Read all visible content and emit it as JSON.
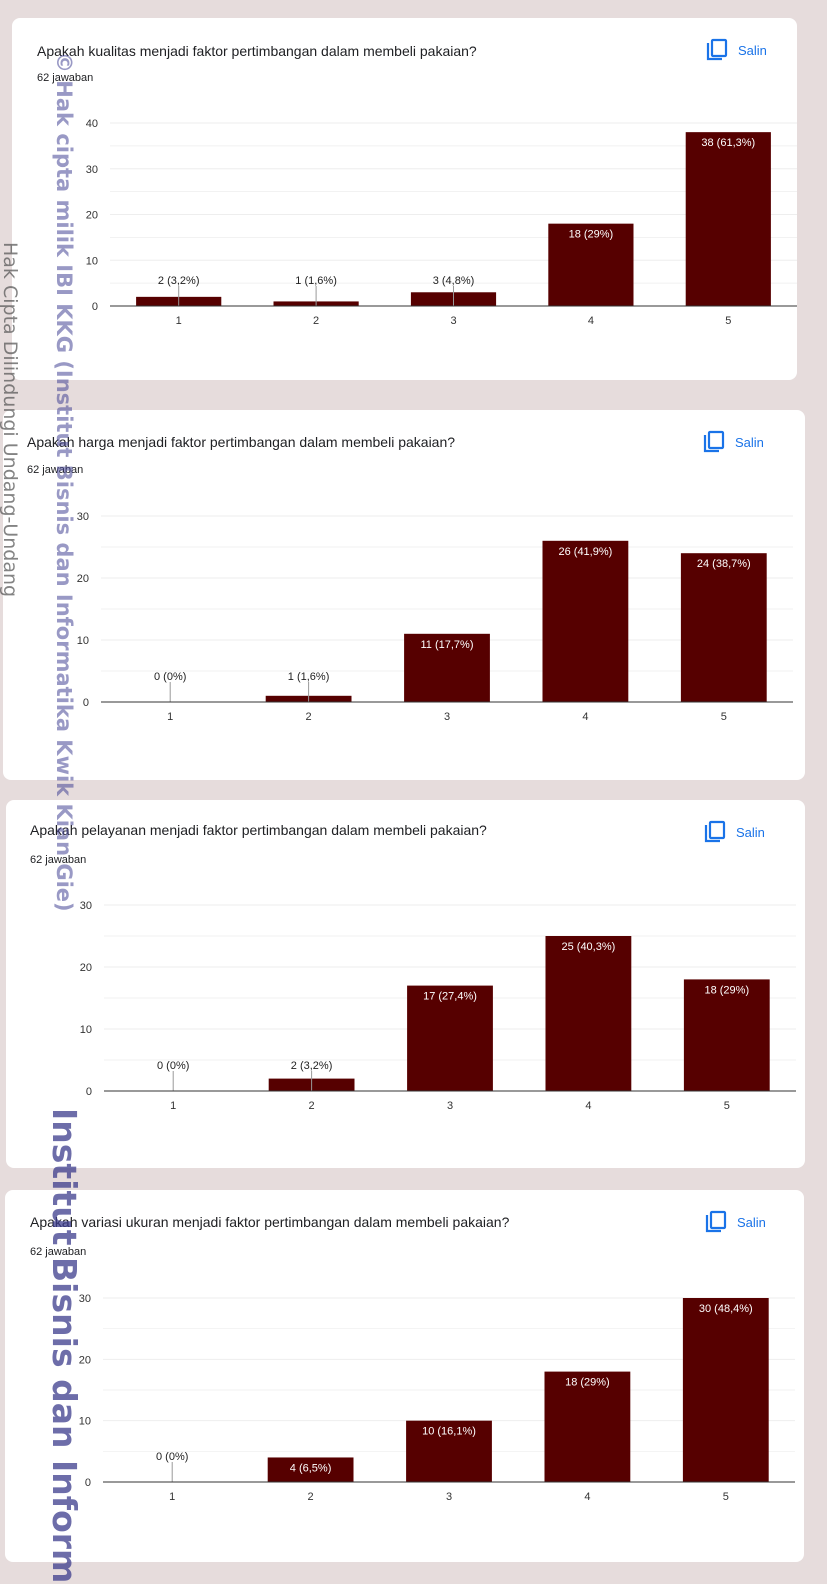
{
  "copy_label": "Salin",
  "watermarks": {
    "institution": "© Hak cipta milik IBI KKG (Institut Bisnis dan Informatika Kwik Kian Gie)",
    "protection": "Hak Cipta Dilindungi Undang-Undang",
    "bottom": "Institut Bisnis dan Inform"
  },
  "colors": {
    "bar": "#560000",
    "accent": "#1a73e8",
    "grid": "#eeeeee",
    "axis": "#333333"
  },
  "chart_data": [
    {
      "type": "bar",
      "title": "Apakah kualitas menjadi faktor pertimbangan dalam membeli pakaian?",
      "subtitle": "62 jawaban",
      "categories": [
        "1",
        "2",
        "3",
        "4",
        "5"
      ],
      "values": [
        2,
        1,
        3,
        18,
        38
      ],
      "labels": [
        "2 (3,2%)",
        "1 (1,6%)",
        "3 (4,8%)",
        "18 (29%)",
        "38 (61,3%)"
      ],
      "yticks": [
        0,
        10,
        20,
        30,
        40
      ],
      "ylim": [
        0,
        40
      ]
    },
    {
      "type": "bar",
      "title": "Apakah harga menjadi faktor pertimbangan dalam membeli pakaian?",
      "subtitle": "62 jawaban",
      "categories": [
        "1",
        "2",
        "3",
        "4",
        "5"
      ],
      "values": [
        0,
        1,
        11,
        26,
        24
      ],
      "labels": [
        "0 (0%)",
        "1 (1,6%)",
        "11 (17,7%)",
        "26 (41,9%)",
        "24 (38,7%)"
      ],
      "yticks": [
        0,
        10,
        20,
        30
      ],
      "ylim": [
        0,
        30
      ]
    },
    {
      "type": "bar",
      "title": "Apakah pelayanan menjadi faktor pertimbangan dalam membeli pakaian?",
      "subtitle": "62 jawaban",
      "categories": [
        "1",
        "2",
        "3",
        "4",
        "5"
      ],
      "values": [
        0,
        2,
        17,
        25,
        18
      ],
      "labels": [
        "0 (0%)",
        "2 (3,2%)",
        "17 (27,4%)",
        "25 (40,3%)",
        "18 (29%)"
      ],
      "yticks": [
        0,
        10,
        20,
        30
      ],
      "ylim": [
        0,
        30
      ]
    },
    {
      "type": "bar",
      "title": "Apakah variasi ukuran menjadi faktor pertimbangan dalam membeli pakaian?",
      "subtitle": "62 jawaban",
      "categories": [
        "1",
        "2",
        "3",
        "4",
        "5"
      ],
      "values": [
        0,
        4,
        10,
        18,
        30
      ],
      "labels": [
        "0 (0%)",
        "4 (6,5%)",
        "10 (16,1%)",
        "18 (29%)",
        "30 (48,4%)"
      ],
      "yticks": [
        0,
        10,
        20,
        30
      ],
      "ylim": [
        0,
        30
      ]
    }
  ]
}
